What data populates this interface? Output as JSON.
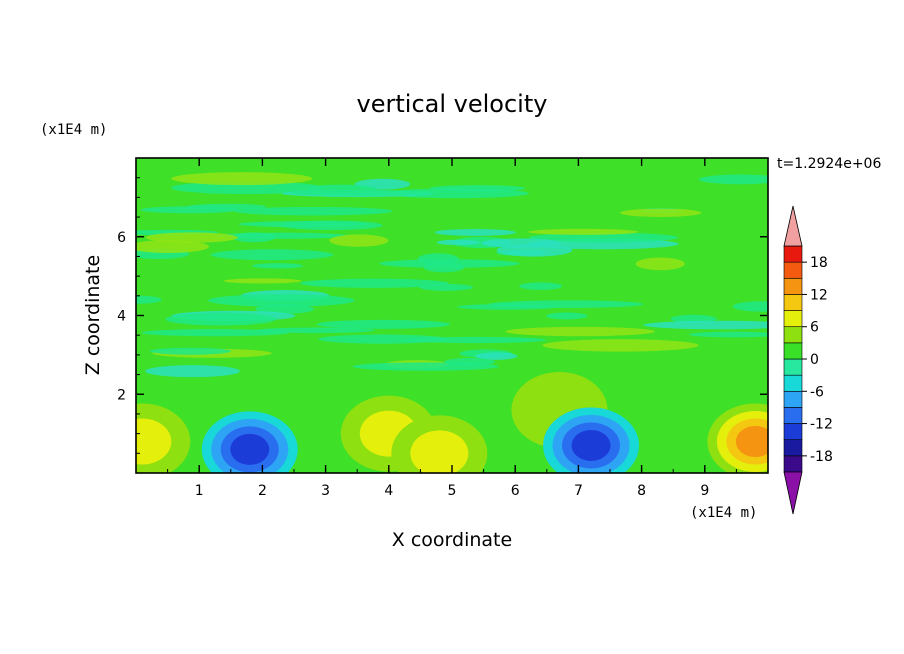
{
  "chart_data": {
    "type": "heatmap",
    "title": "vertical velocity",
    "xlabel": "X coordinate",
    "ylabel": "Z coordinate",
    "x_unit": "(x1E4 m)",
    "y_unit": "(x1E4 m)",
    "time_label": "t=1.2924e+06",
    "xlim": [
      0,
      10
    ],
    "ylim": [
      0,
      8
    ],
    "x_ticks": [
      "1",
      "2",
      "3",
      "4",
      "5",
      "6",
      "7",
      "8",
      "9"
    ],
    "y_ticks": [
      "2",
      "4",
      "6"
    ],
    "colorbar": {
      "levels": [
        -21,
        -18,
        -15,
        -12,
        -9,
        -6,
        -3,
        0,
        3,
        6,
        9,
        12,
        15,
        18,
        21
      ],
      "tick_labels": [
        "18",
        "12",
        "6",
        "0",
        "-6",
        "-12",
        "-18"
      ],
      "colors": [
        "#3a0a8a",
        "#1a1aa0",
        "#1c3cd8",
        "#2a6ef0",
        "#2ea4f4",
        "#18d8d8",
        "#28e8a0",
        "#3ae028",
        "#8ee010",
        "#e4f00c",
        "#f4c810",
        "#f49410",
        "#f45a10",
        "#e81a10"
      ],
      "under_color": "#8a10a8",
      "over_color": "#f0a0a0"
    },
    "features": [
      {
        "x": 0.1,
        "z": 0.8,
        "value": 6
      },
      {
        "x": 1.8,
        "z": 0.6,
        "value": -12
      },
      {
        "x": 4.0,
        "z": 1.0,
        "value": 6
      },
      {
        "x": 4.8,
        "z": 0.5,
        "value": 6
      },
      {
        "x": 6.7,
        "z": 1.6,
        "value": 3
      },
      {
        "x": 7.2,
        "z": 0.7,
        "value": -12
      },
      {
        "x": 9.8,
        "z": 0.8,
        "value": 12
      }
    ]
  }
}
